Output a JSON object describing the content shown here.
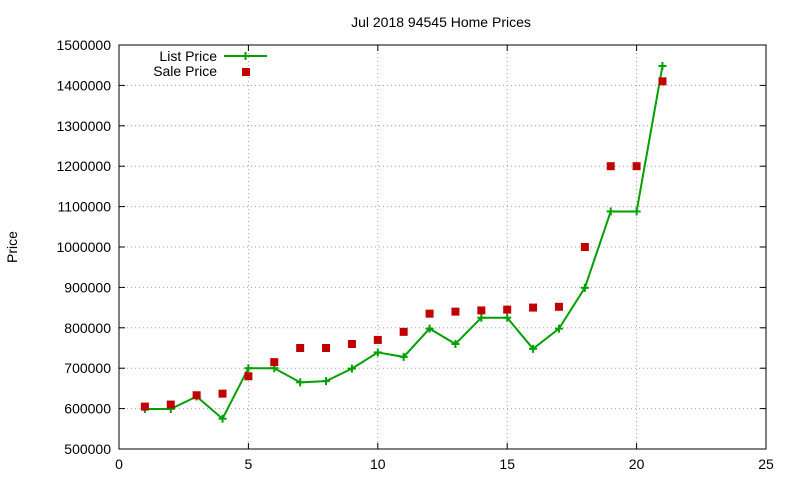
{
  "chart_data": {
    "type": "line",
    "title": "Jul 2018 94545 Home Prices",
    "xlabel": "",
    "ylabel": "Price",
    "xlim": [
      0,
      25
    ],
    "ylim": [
      500000,
      1500000
    ],
    "x_ticks": [
      "0",
      "5",
      "10",
      "15",
      "20",
      "25"
    ],
    "y_ticks": [
      "500000",
      "600000",
      "700000",
      "800000",
      "900000",
      "1000000",
      "1100000",
      "1200000",
      "1300000",
      "1400000",
      "1500000"
    ],
    "grid": true,
    "legend_position": "top-left",
    "x": [
      1,
      2,
      3,
      4,
      5,
      6,
      7,
      8,
      9,
      10,
      11,
      12,
      13,
      14,
      15,
      16,
      17,
      18,
      19,
      20,
      21
    ],
    "series": [
      {
        "name": "List Price",
        "style": "line-with-plus-markers",
        "color": "#00a000",
        "values": [
          599000,
          599000,
          630000,
          575000,
          700000,
          700000,
          665000,
          668000,
          699000,
          739000,
          728000,
          798000,
          760000,
          825000,
          825000,
          748000,
          798000,
          899000,
          1088000,
          1088000,
          1448000
        ]
      },
      {
        "name": "Sale Price",
        "style": "square-markers",
        "color": "#c00000",
        "values": [
          605000,
          610000,
          633000,
          637000,
          680000,
          715000,
          750000,
          750000,
          760000,
          770000,
          790000,
          835000,
          840000,
          843000,
          845000,
          850000,
          852000,
          1000000,
          1200000,
          1200000,
          1410000
        ]
      }
    ]
  }
}
